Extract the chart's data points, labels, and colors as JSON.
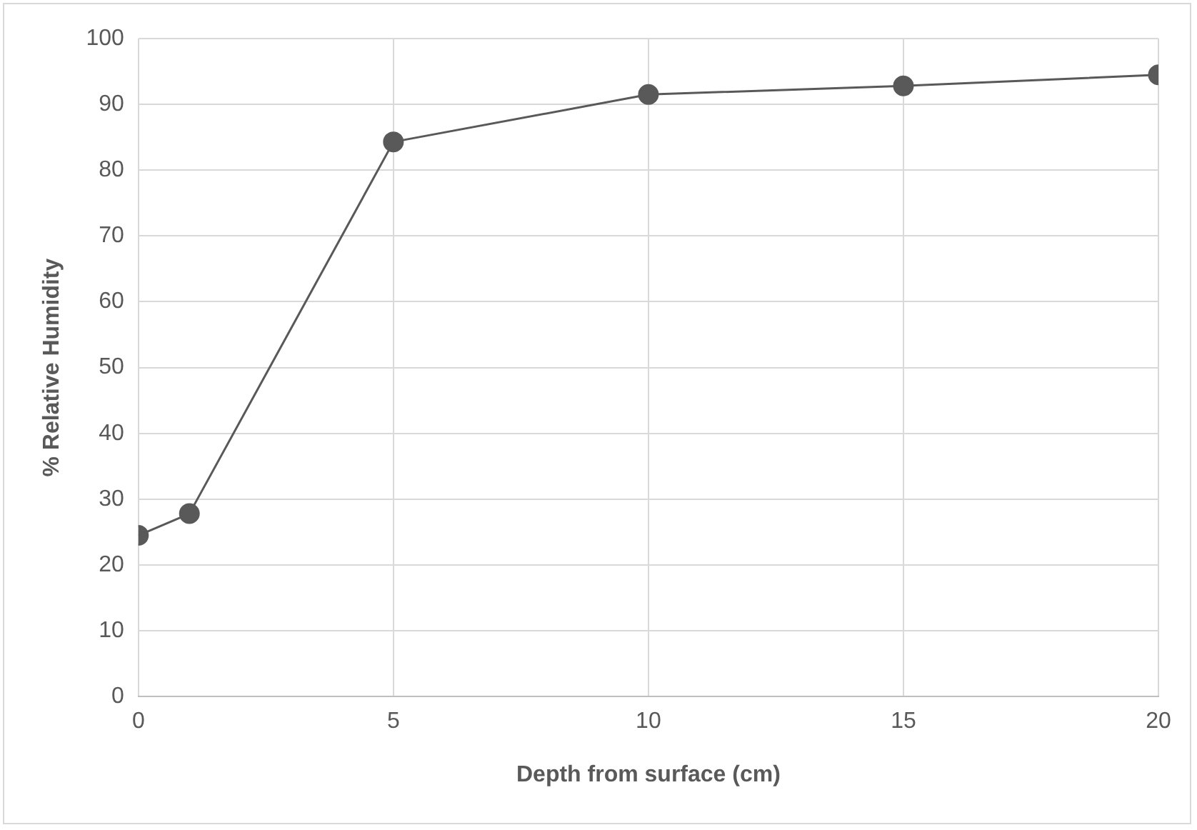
{
  "chart_data": {
    "type": "line",
    "xlabel": "Depth from surface (cm)",
    "ylabel": "% Relative Humidity",
    "x": [
      0,
      1,
      5,
      10,
      15,
      20
    ],
    "series": [
      {
        "color": "#595959",
        "values": [
          24.5,
          27.8,
          84.3,
          91.5,
          92.8,
          94.5
        ]
      }
    ],
    "xlim": [
      0,
      20
    ],
    "xticks": [
      0,
      5,
      10,
      15,
      20
    ],
    "ylim": [
      0,
      100
    ],
    "yticks": [
      0,
      10,
      20,
      30,
      40,
      50,
      60,
      70,
      80,
      90,
      100
    ],
    "grid": true,
    "legend": false,
    "marker": "circle",
    "line_style": "solid"
  }
}
